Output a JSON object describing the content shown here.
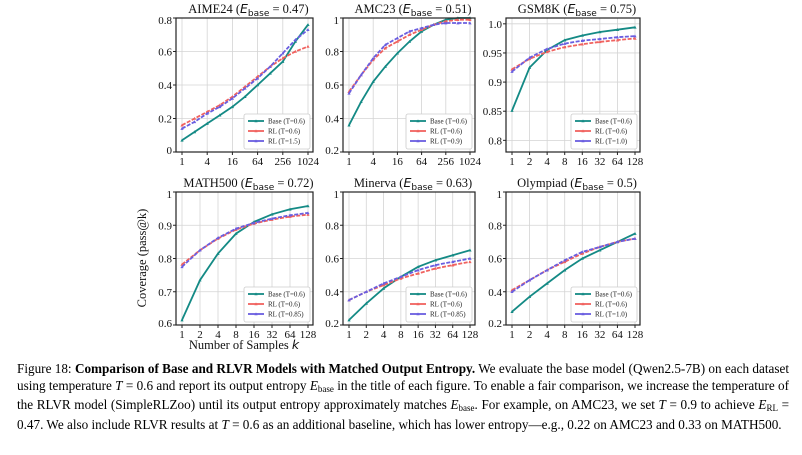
{
  "figure": {
    "ylabel": "Coverage (pass@k)",
    "xlabel": "Number of Samples k",
    "colors": {
      "base": "#148a85",
      "rl": "#f0625f",
      "rl_matched": "#6a5ee0"
    }
  },
  "chart_data": [
    {
      "type": "line",
      "title": "AIME24 (E_base = 0.47)",
      "title_name": "AIME24",
      "entropy": "0.47",
      "x": [
        1,
        2,
        4,
        8,
        16,
        32,
        64,
        128,
        256,
        512,
        1024
      ],
      "xticks": [
        1,
        4,
        16,
        64,
        256,
        1024
      ],
      "ylim": [
        0,
        0.8
      ],
      "yticks": [
        "0",
        "0.2",
        "0.4",
        "0.6",
        "0.8"
      ],
      "ytick_values": [
        0,
        0.2,
        0.4,
        0.6,
        0.8
      ],
      "grid": true,
      "legend_position": "lower-right",
      "series": [
        {
          "name": "Base (T=0.6)",
          "key": "base",
          "values": [
            0.07,
            0.12,
            0.17,
            0.22,
            0.27,
            0.33,
            0.4,
            0.47,
            0.54,
            0.66,
            0.76
          ]
        },
        {
          "name": "RL (T=0.6)",
          "key": "rl",
          "values": [
            0.16,
            0.2,
            0.24,
            0.28,
            0.33,
            0.39,
            0.45,
            0.51,
            0.56,
            0.6,
            0.63
          ]
        },
        {
          "name": "RL (T=1.5)",
          "key": "rl_matched",
          "values": [
            0.14,
            0.18,
            0.23,
            0.27,
            0.32,
            0.38,
            0.44,
            0.51,
            0.59,
            0.67,
            0.73
          ]
        }
      ]
    },
    {
      "type": "line",
      "title": "AMC23 (E_base = 0.51)",
      "title_name": "AMC23",
      "entropy": "0.51",
      "x": [
        1,
        2,
        4,
        8,
        16,
        32,
        64,
        128,
        256,
        512,
        1024
      ],
      "xticks": [
        1,
        4,
        16,
        64,
        256,
        1024
      ],
      "ylim": [
        0.2,
        1.0
      ],
      "yticks": [
        "0.2",
        "0.4",
        "0.6",
        "0.8",
        "1"
      ],
      "ytick_values": [
        0.2,
        0.4,
        0.6,
        0.8,
        1.0
      ],
      "grid": true,
      "legend_position": "lower-right",
      "series": [
        {
          "name": "Base (T=0.6)",
          "key": "base",
          "values": [
            0.36,
            0.5,
            0.62,
            0.71,
            0.79,
            0.86,
            0.92,
            0.96,
            0.99,
            1.0,
            1.0
          ]
        },
        {
          "name": "RL (T=0.6)",
          "key": "rl",
          "values": [
            0.56,
            0.66,
            0.75,
            0.82,
            0.86,
            0.9,
            0.93,
            0.96,
            0.98,
            0.99,
            0.99
          ]
        },
        {
          "name": "RL (T=0.9)",
          "key": "rl_matched",
          "values": [
            0.55,
            0.66,
            0.76,
            0.84,
            0.88,
            0.92,
            0.94,
            0.96,
            0.97,
            0.97,
            0.97
          ]
        }
      ]
    },
    {
      "type": "line",
      "title": "GSM8K (E_base = 0.75)",
      "title_name": "GSM8K",
      "entropy": "0.75",
      "x": [
        1,
        2,
        4,
        8,
        16,
        32,
        64,
        128
      ],
      "xticks": [
        1,
        2,
        4,
        8,
        16,
        32,
        64,
        128
      ],
      "ylim": [
        0.78,
        1.01
      ],
      "yticks": [
        "0.8",
        "0.85",
        "0.9",
        "0.95",
        "1.0"
      ],
      "ytick_values": [
        0.8,
        0.85,
        0.9,
        0.95,
        1.0
      ],
      "grid": true,
      "legend_position": "lower-right",
      "series": [
        {
          "name": "Base (T=0.6)",
          "key": "base",
          "values": [
            0.851,
            0.925,
            0.955,
            0.972,
            0.98,
            0.986,
            0.99,
            0.994
          ]
        },
        {
          "name": "RL (T=0.6)",
          "key": "rl",
          "values": [
            0.922,
            0.94,
            0.952,
            0.96,
            0.965,
            0.969,
            0.972,
            0.975
          ]
        },
        {
          "name": "RL (T=1.0)",
          "key": "rl_matched",
          "values": [
            0.918,
            0.942,
            0.957,
            0.966,
            0.971,
            0.974,
            0.977,
            0.979
          ]
        }
      ]
    },
    {
      "type": "line",
      "title": "MATH500 (E_base = 0.72)",
      "title_name": "MATH500",
      "entropy": "0.72",
      "x": [
        1,
        2,
        4,
        8,
        16,
        32,
        64,
        128
      ],
      "xticks": [
        1,
        2,
        4,
        8,
        16,
        32,
        64,
        128
      ],
      "ylim": [
        0.6,
        1.0
      ],
      "yticks": [
        "0.6",
        "0.7",
        "0.8",
        "0.9",
        "1"
      ],
      "ytick_values": [
        0.6,
        0.7,
        0.8,
        0.9,
        1.0
      ],
      "grid": true,
      "legend_position": "lower-right",
      "series": [
        {
          "name": "Base (T=0.6)",
          "key": "base",
          "values": [
            0.615,
            0.735,
            0.815,
            0.875,
            0.91,
            0.933,
            0.948,
            0.958
          ]
        },
        {
          "name": "RL (T=0.6)",
          "key": "rl",
          "values": [
            0.782,
            0.825,
            0.86,
            0.887,
            0.905,
            0.917,
            0.926,
            0.932
          ]
        },
        {
          "name": "RL (T=0.85)",
          "key": "rl_matched",
          "values": [
            0.775,
            0.825,
            0.862,
            0.89,
            0.907,
            0.92,
            0.93,
            0.937
          ]
        }
      ]
    },
    {
      "type": "line",
      "title": "Minerva (E_base = 0.63)",
      "title_name": "Minerva",
      "entropy": "0.63",
      "x": [
        1,
        2,
        4,
        8,
        16,
        32,
        64,
        128
      ],
      "xticks": [
        1,
        2,
        4,
        8,
        16,
        32,
        64,
        128
      ],
      "ylim": [
        0.2,
        1.0
      ],
      "yticks": [
        "0.2",
        "0.4",
        "0.6",
        "0.8",
        "1"
      ],
      "ytick_values": [
        0.2,
        0.4,
        0.6,
        0.8,
        1.0
      ],
      "grid": true,
      "legend_position": "lower-right",
      "series": [
        {
          "name": "Base (T=0.6)",
          "key": "base",
          "values": [
            0.23,
            0.33,
            0.42,
            0.49,
            0.55,
            0.59,
            0.62,
            0.65
          ]
        },
        {
          "name": "RL (T=0.6)",
          "key": "rl",
          "values": [
            0.35,
            0.4,
            0.44,
            0.48,
            0.51,
            0.54,
            0.56,
            0.58
          ]
        },
        {
          "name": "RL (T=0.85)",
          "key": "rl_matched",
          "values": [
            0.35,
            0.4,
            0.45,
            0.49,
            0.53,
            0.56,
            0.58,
            0.6
          ]
        }
      ]
    },
    {
      "type": "line",
      "title": "Olympiad (E_base = 0.5)",
      "title_name": "Olympiad",
      "entropy": "0.5",
      "x": [
        1,
        2,
        4,
        8,
        16,
        32,
        64,
        128
      ],
      "xticks": [
        1,
        2,
        4,
        8,
        16,
        32,
        64,
        128
      ],
      "ylim": [
        0.2,
        1.0
      ],
      "yticks": [
        "0.2",
        "0.4",
        "0.6",
        "0.8",
        "1"
      ],
      "ytick_values": [
        0.2,
        0.4,
        0.6,
        0.8,
        1.0
      ],
      "grid": true,
      "legend_position": "lower-right",
      "series": [
        {
          "name": "Base (T=0.6)",
          "key": "base",
          "values": [
            0.28,
            0.37,
            0.45,
            0.53,
            0.6,
            0.65,
            0.7,
            0.75
          ]
        },
        {
          "name": "RL (T=0.6)",
          "key": "rl",
          "values": [
            0.41,
            0.47,
            0.53,
            0.58,
            0.63,
            0.67,
            0.7,
            0.72
          ]
        },
        {
          "name": "RL (T=1.0)",
          "key": "rl_matched",
          "values": [
            0.4,
            0.47,
            0.53,
            0.59,
            0.64,
            0.67,
            0.7,
            0.72
          ]
        }
      ]
    }
  ],
  "caption": {
    "label": "Figure 18:",
    "title": "Comparison of Base and RLVR Models with Matched Output Entropy.",
    "s1a": "We evaluate the base model (Qwen2.5-7B) on each dataset using temperature",
    "T": "T",
    "eq1": "= 0.6 and report its output entropy",
    "E": "E",
    "base_sub": "base",
    "s1b": "in the title of each figure. To enable a fair comparison, we increase the temperature of the RLVR model (SimpleRLZoo) until its output entropy approximately matches",
    "s2a": ". For example, on AMC23, we set",
    "eq2": "= 0.9 to achieve",
    "rl_sub": "RL",
    "eq3": "= 0.47. We also include RLVR results at",
    "eq4": "= 0.6 as an additional baseline, which has lower entropy—e.g., 0.22 on AMC23 and 0.33 on MATH500."
  }
}
